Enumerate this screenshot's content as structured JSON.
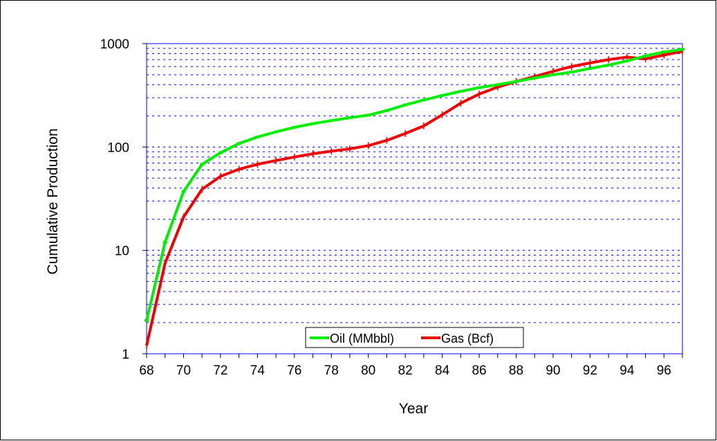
{
  "chart_data": {
    "type": "line",
    "title": "",
    "xlabel": "Year",
    "ylabel": "Cumulative Production",
    "y_scale": "log",
    "ylim": [
      1,
      1000
    ],
    "xlim": [
      68,
      97
    ],
    "x_tick_labels": [
      "68",
      "70",
      "72",
      "74",
      "76",
      "78",
      "80",
      "82",
      "84",
      "86",
      "88",
      "90",
      "92",
      "94",
      "96"
    ],
    "y_tick_labels": [
      "1",
      "10",
      "100",
      "1000"
    ],
    "grid": "dashed horizontal minor gridlines",
    "legend_position": "bottom-center",
    "x": [
      68,
      69,
      70,
      71,
      72,
      73,
      74,
      75,
      76,
      77,
      78,
      79,
      80,
      81,
      82,
      83,
      84,
      85,
      86,
      87,
      88,
      89,
      90,
      91,
      92,
      93,
      94,
      95,
      96,
      97
    ],
    "series": [
      {
        "name": "Oil (MMbbl)",
        "color": "#00ee00",
        "values": [
          2.1,
          12,
          37,
          68,
          88,
          108,
          125,
          140,
          155,
          168,
          180,
          192,
          203,
          225,
          255,
          285,
          315,
          345,
          375,
          400,
          430,
          465,
          500,
          530,
          575,
          620,
          680,
          760,
          830,
          880
        ]
      },
      {
        "name": "Gas (Bcf)",
        "color": "#ee0000",
        "values": [
          1.2,
          7.5,
          21,
          39,
          52,
          61,
          68,
          74,
          80,
          86,
          91,
          96,
          103,
          116,
          135,
          160,
          205,
          265,
          325,
          380,
          430,
          480,
          540,
          600,
          650,
          700,
          740,
          710,
          775,
          840
        ]
      }
    ]
  }
}
